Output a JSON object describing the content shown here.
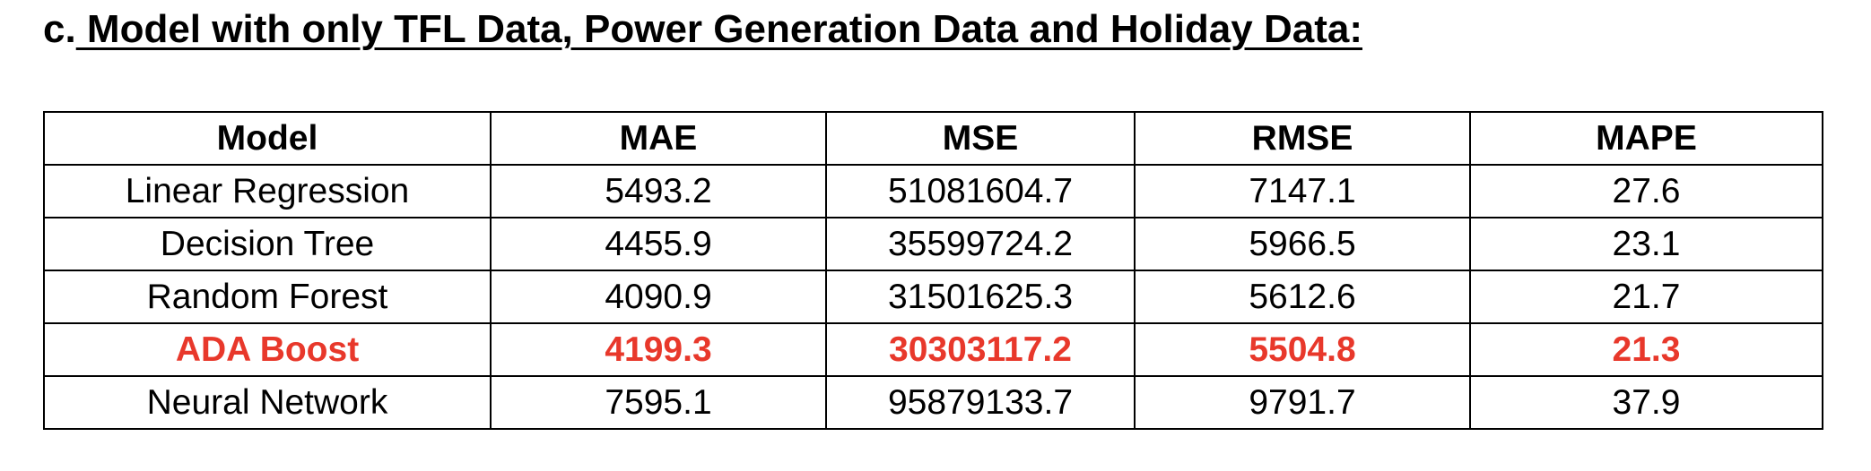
{
  "heading": {
    "prefix": "c.",
    "title": " Model with only TFL Data, Power Generation Data and Holiday Data:"
  },
  "table": {
    "columns": [
      "Model",
      "MAE",
      "MSE",
      "RMSE",
      "MAPE"
    ],
    "rows": [
      {
        "model": "Linear Regression",
        "mae": "5493.2",
        "mse": "51081604.7",
        "rmse": "7147.1",
        "mape": "27.6"
      },
      {
        "model": "Decision Tree",
        "mae": "4455.9",
        "mse": "35599724.2",
        "rmse": "5966.5",
        "mape": "23.1"
      },
      {
        "model": "Random Forest",
        "mae": "4090.9",
        "mse": "31501625.3",
        "rmse": "5612.6",
        "mape": "21.7"
      },
      {
        "model": "ADA Boost",
        "mae": "4199.3",
        "mse": "30303117.2",
        "rmse": "5504.8",
        "mape": "21.3"
      },
      {
        "model": "Neural Network",
        "mae": "7595.1",
        "mse": "95879133.7",
        "rmse": "9791.7",
        "mape": "37.9"
      }
    ],
    "highlight_color": "#e8382b"
  }
}
